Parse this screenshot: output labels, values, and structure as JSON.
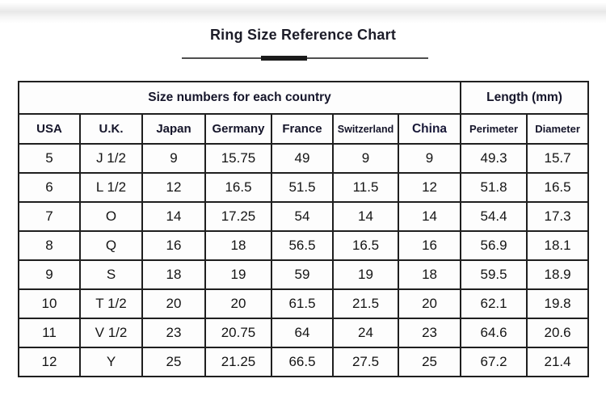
{
  "page": {
    "title": "Ring Size Reference Chart"
  },
  "chart_data": {
    "type": "table",
    "title": "Ring Size Reference Chart",
    "group_headers": [
      {
        "label": "Size numbers for each country",
        "span": 7
      },
      {
        "label": "Length (mm)",
        "span": 2
      }
    ],
    "columns": [
      "USA",
      "U.K.",
      "Japan",
      "Germany",
      "France",
      "Switzerland",
      "China",
      "Perimeter",
      "Diameter"
    ],
    "rows": [
      [
        "5",
        "J 1/2",
        "9",
        "15.75",
        "49",
        "9",
        "9",
        "49.3",
        "15.7"
      ],
      [
        "6",
        "L 1/2",
        "12",
        "16.5",
        "51.5",
        "11.5",
        "12",
        "51.8",
        "16.5"
      ],
      [
        "7",
        "O",
        "14",
        "17.25",
        "54",
        "14",
        "14",
        "54.4",
        "17.3"
      ],
      [
        "8",
        "Q",
        "16",
        "18",
        "56.5",
        "16.5",
        "16",
        "56.9",
        "18.1"
      ],
      [
        "9",
        "S",
        "18",
        "19",
        "59",
        "19",
        "18",
        "59.5",
        "18.9"
      ],
      [
        "10",
        "T 1/2",
        "20",
        "20",
        "61.5",
        "21.5",
        "20",
        "62.1",
        "19.8"
      ],
      [
        "11",
        "V 1/2",
        "23",
        "20.75",
        "64",
        "24",
        "23",
        "64.6",
        "20.6"
      ],
      [
        "12",
        "Y",
        "25",
        "21.25",
        "66.5",
        "27.5",
        "25",
        "67.2",
        "21.4"
      ]
    ],
    "colors": {
      "border": "#1f1f1f",
      "header_text": "#15152a",
      "cell_text": "#141414",
      "background": "#ffffff"
    },
    "layout_hints": {
      "legend": "none",
      "grid": "full table grid"
    }
  }
}
